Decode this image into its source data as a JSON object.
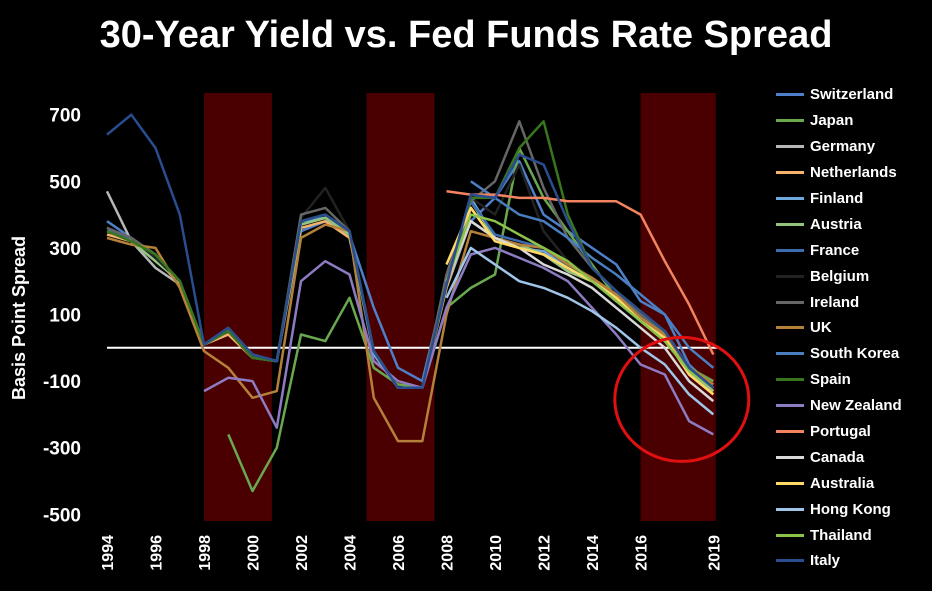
{
  "chart_data": {
    "type": "line",
    "title": "30-Year Yield vs. Fed Funds Rate Spread",
    "xlabel": "",
    "ylabel": "Basis Point Spread",
    "ylim": [
      -520,
      720
    ],
    "xlim": [
      1994,
      2020.1
    ],
    "y_ticks": [
      "700",
      "500",
      "300",
      "100",
      "-100",
      "-300",
      "-500"
    ],
    "y_tick_values": [
      700,
      500,
      300,
      100,
      -100,
      -300,
      -500
    ],
    "x_ticks": [
      "1994",
      "1996",
      "1998",
      "2000",
      "2002",
      "2004",
      "2006",
      "2008",
      "2010",
      "2012",
      "2014",
      "2016",
      "2019"
    ],
    "x_tick_values": [
      1994,
      1996,
      1998,
      2000,
      2002,
      2004,
      2006,
      2008,
      2010,
      2012,
      2014,
      2016,
      2019
    ],
    "zero_line": 0,
    "recession_bands": [
      [
        1998,
        2000.8
      ],
      [
        2004.7,
        2007.5
      ],
      [
        2016,
        2019.1
      ]
    ],
    "band_color": "#4a0000",
    "annotation_circle": {
      "x": 2017.7,
      "y": -155,
      "color": "#e01010"
    },
    "series": [
      {
        "name": "Switzerland",
        "color": "#4f7fc8",
        "x": [
          1994,
          1995,
          1996,
          1997,
          1998,
          1999,
          2000,
          2001,
          2002,
          2003,
          2004,
          2005,
          2006,
          2007,
          2008,
          2009,
          2010,
          2011,
          2012,
          2013,
          2014,
          2015,
          2016,
          2017,
          2018,
          2019
        ],
        "values": [
          380,
          330,
          280,
          200,
          10,
          40,
          -20,
          -40,
          350,
          380,
          340,
          120,
          -60,
          -100,
          200,
          380,
          450,
          560,
          400,
          350,
          300,
          250,
          140,
          100,
          -50,
          -120
        ]
      },
      {
        "name": "Japan",
        "color": "#6aa84f",
        "x": [
          1994,
          1995,
          1996,
          1997,
          1998,
          1999,
          2000,
          2001,
          2002,
          2003,
          2004,
          2005,
          2006,
          2007,
          2008,
          2009,
          2010,
          2011,
          2012,
          2013,
          2014,
          2015,
          2016,
          2017,
          2018,
          2019
        ],
        "values": [
          null,
          null,
          null,
          null,
          null,
          -260,
          -430,
          -300,
          40,
          20,
          150,
          -60,
          -110,
          -120,
          120,
          180,
          220,
          600,
          450,
          350,
          250,
          150,
          80,
          20,
          -60,
          -100
        ]
      },
      {
        "name": "Germany",
        "color": "#b7b7b7",
        "x": [
          1994,
          1995,
          1996,
          1997,
          1998,
          1999,
          2000,
          2001,
          2002,
          2003,
          2004,
          2005,
          2006,
          2007,
          2008,
          2009,
          2010,
          2011,
          2012,
          2013,
          2014,
          2015,
          2016,
          2017,
          2018,
          2019
        ],
        "values": [
          470,
          320,
          240,
          190,
          10,
          50,
          -30,
          -40,
          370,
          390,
          340,
          -10,
          -120,
          -120,
          180,
          380,
          330,
          300,
          280,
          230,
          200,
          150,
          90,
          40,
          -80,
          -140
        ]
      },
      {
        "name": "Netherlands",
        "color": "#f6b26b",
        "x": [
          1994,
          1995,
          1996,
          1997,
          1998,
          1999,
          2000,
          2001,
          2002,
          2003,
          2004,
          2005,
          2006,
          2007,
          2008,
          2009,
          2010,
          2011,
          2012,
          2013,
          2014,
          2015,
          2016,
          2017,
          2018,
          2019
        ],
        "values": [
          340,
          320,
          270,
          190,
          10,
          40,
          -30,
          -40,
          360,
          380,
          330,
          -10,
          -120,
          -120,
          180,
          420,
          320,
          300,
          280,
          230,
          200,
          160,
          90,
          40,
          -70,
          -130
        ]
      },
      {
        "name": "Finland",
        "color": "#6fa8dc",
        "x": [
          1994,
          1995,
          1996,
          1997,
          1998,
          1999,
          2000,
          2001,
          2002,
          2003,
          2004,
          2005,
          2006,
          2007,
          2008,
          2009,
          2010,
          2011,
          2012,
          2013,
          2014,
          2015,
          2016,
          2017,
          2018,
          2019
        ],
        "values": [
          360,
          320,
          260,
          200,
          10,
          50,
          -30,
          -40,
          380,
          390,
          340,
          -20,
          -120,
          -120,
          200,
          450,
          330,
          300,
          290,
          240,
          200,
          150,
          90,
          50,
          -60,
          -120
        ]
      },
      {
        "name": "Austria",
        "color": "#93c47d",
        "x": [
          1994,
          1995,
          1996,
          1997,
          1998,
          1999,
          2000,
          2001,
          2002,
          2003,
          2004,
          2005,
          2006,
          2007,
          2008,
          2009,
          2010,
          2011,
          2012,
          2013,
          2014,
          2015,
          2016,
          2017,
          2018,
          2019
        ],
        "values": [
          350,
          320,
          260,
          200,
          10,
          50,
          -30,
          -40,
          370,
          390,
          340,
          -10,
          -120,
          -120,
          200,
          440,
          330,
          310,
          280,
          230,
          200,
          150,
          90,
          40,
          -70,
          -130
        ]
      },
      {
        "name": "France",
        "color": "#3d6bb0",
        "x": [
          1994,
          1995,
          1996,
          1997,
          1998,
          1999,
          2000,
          2001,
          2002,
          2003,
          2004,
          2005,
          2006,
          2007,
          2008,
          2009,
          2010,
          2011,
          2012,
          2013,
          2014,
          2015,
          2016,
          2017,
          2018,
          2019
        ],
        "values": [
          350,
          330,
          270,
          200,
          10,
          50,
          -30,
          -40,
          380,
          400,
          350,
          -10,
          -120,
          -120,
          190,
          440,
          340,
          320,
          300,
          250,
          210,
          160,
          100,
          50,
          -60,
          -120
        ]
      },
      {
        "name": "Belgium",
        "color": "#222222",
        "x": [
          1994,
          1995,
          1996,
          1997,
          1998,
          1999,
          2000,
          2001,
          2002,
          2003,
          2004,
          2005,
          2006,
          2007,
          2008,
          2009,
          2010,
          2011,
          2012,
          2013,
          2014,
          2015,
          2016,
          2017,
          2018,
          2019
        ],
        "values": [
          360,
          330,
          270,
          200,
          10,
          50,
          -30,
          -40,
          390,
          480,
          350,
          -10,
          -120,
          -120,
          190,
          450,
          400,
          550,
          350,
          260,
          210,
          160,
          100,
          50,
          -60,
          -120
        ]
      },
      {
        "name": "Ireland",
        "color": "#666666",
        "x": [
          1994,
          1995,
          1996,
          1997,
          1998,
          1999,
          2000,
          2001,
          2002,
          2003,
          2004,
          2005,
          2006,
          2007,
          2008,
          2009,
          2010,
          2011,
          2012,
          2013,
          2014,
          2015,
          2016,
          2017,
          2018,
          2019
        ],
        "values": [
          360,
          330,
          280,
          200,
          10,
          60,
          -20,
          -40,
          400,
          420,
          350,
          -10,
          -120,
          -120,
          220,
          440,
          500,
          680,
          480,
          330,
          240,
          170,
          100,
          50,
          -60,
          -120
        ]
      },
      {
        "name": "UK",
        "color": "#b5803a",
        "x": [
          1994,
          1995,
          1996,
          1997,
          1998,
          1999,
          2000,
          2001,
          2002,
          2003,
          2004,
          2005,
          2006,
          2007,
          2008,
          2009,
          2010,
          2011,
          2012,
          2013,
          2014,
          2015,
          2016,
          2017,
          2018,
          2019
        ],
        "values": [
          330,
          310,
          300,
          180,
          -10,
          -60,
          -150,
          -130,
          330,
          370,
          350,
          -150,
          -280,
          -280,
          100,
          350,
          330,
          310,
          300,
          250,
          210,
          160,
          90,
          40,
          -60,
          -110
        ]
      },
      {
        "name": "South Korea",
        "color": "#4a7ec0",
        "x": [
          1994,
          1995,
          1996,
          1997,
          1998,
          1999,
          2000,
          2001,
          2002,
          2003,
          2004,
          2005,
          2006,
          2007,
          2008,
          2009,
          2010,
          2011,
          2012,
          2013,
          2014,
          2015,
          2016,
          2017,
          2018,
          2019
        ],
        "values": [
          null,
          null,
          null,
          null,
          null,
          null,
          null,
          null,
          null,
          null,
          null,
          null,
          null,
          null,
          null,
          500,
          450,
          400,
          380,
          330,
          270,
          220,
          160,
          100,
          0,
          -60
        ]
      },
      {
        "name": "Spain",
        "color": "#38761d",
        "x": [
          1994,
          1995,
          1996,
          1997,
          1998,
          1999,
          2000,
          2001,
          2002,
          2003,
          2004,
          2005,
          2006,
          2007,
          2008,
          2009,
          2010,
          2011,
          2012,
          2013,
          2014,
          2015,
          2016,
          2017,
          2018,
          2019
        ],
        "values": [
          350,
          320,
          280,
          200,
          10,
          50,
          -30,
          -40,
          380,
          400,
          350,
          -10,
          -120,
          -120,
          190,
          450,
          450,
          600,
          680,
          400,
          240,
          170,
          110,
          50,
          -60,
          -120
        ]
      },
      {
        "name": "New Zealand",
        "color": "#8e7cc3",
        "x": [
          1994,
          1995,
          1996,
          1997,
          1998,
          1999,
          2000,
          2001,
          2002,
          2003,
          2004,
          2005,
          2006,
          2007,
          2008,
          2009,
          2010,
          2011,
          2012,
          2013,
          2014,
          2015,
          2016,
          2017,
          2018,
          2019
        ],
        "values": [
          null,
          null,
          null,
          null,
          -130,
          -90,
          -100,
          -240,
          200,
          260,
          220,
          -40,
          -100,
          -120,
          120,
          280,
          300,
          270,
          240,
          200,
          120,
          40,
          -50,
          -80,
          -220,
          -260
        ]
      },
      {
        "name": "Portugal",
        "color": "#f4845f",
        "x": [
          1994,
          1995,
          1996,
          1997,
          1998,
          1999,
          2000,
          2001,
          2002,
          2003,
          2004,
          2005,
          2006,
          2007,
          2008,
          2009,
          2010,
          2011,
          2012,
          2013,
          2014,
          2015,
          2016,
          2017,
          2018,
          2019
        ],
        "values": [
          null,
          null,
          null,
          null,
          null,
          null,
          null,
          null,
          null,
          null,
          null,
          null,
          null,
          null,
          470,
          460,
          460,
          450,
          450,
          440,
          440,
          440,
          400,
          260,
          130,
          -20
        ]
      },
      {
        "name": "Canada",
        "color": "#d9d9d9",
        "x": [
          1994,
          1995,
          1996,
          1997,
          1998,
          1999,
          2000,
          2001,
          2002,
          2003,
          2004,
          2005,
          2006,
          2007,
          2008,
          2009,
          2010,
          2011,
          2012,
          2013,
          2014,
          2015,
          2016,
          2017,
          2018,
          2019
        ],
        "values": [
          null,
          null,
          null,
          null,
          null,
          null,
          null,
          null,
          null,
          null,
          null,
          null,
          null,
          null,
          200,
          380,
          330,
          300,
          250,
          220,
          180,
          120,
          60,
          0,
          -100,
          -160
        ]
      },
      {
        "name": "Australia",
        "color": "#ffd966",
        "x": [
          1994,
          1995,
          1996,
          1997,
          1998,
          1999,
          2000,
          2001,
          2002,
          2003,
          2004,
          2005,
          2006,
          2007,
          2008,
          2009,
          2010,
          2011,
          2012,
          2013,
          2014,
          2015,
          2016,
          2017,
          2018,
          2019
        ],
        "values": [
          null,
          null,
          null,
          null,
          null,
          null,
          null,
          null,
          null,
          null,
          null,
          null,
          null,
          null,
          250,
          420,
          320,
          300,
          280,
          240,
          200,
          150,
          80,
          30,
          -80,
          -140
        ]
      },
      {
        "name": "Hong Kong",
        "color": "#9fc5e8",
        "x": [
          1994,
          1995,
          1996,
          1997,
          1998,
          1999,
          2000,
          2001,
          2002,
          2003,
          2004,
          2005,
          2006,
          2007,
          2008,
          2009,
          2010,
          2011,
          2012,
          2013,
          2014,
          2015,
          2016,
          2017,
          2018,
          2019
        ],
        "values": [
          null,
          null,
          null,
          null,
          null,
          null,
          null,
          null,
          null,
          null,
          null,
          null,
          null,
          null,
          150,
          300,
          250,
          200,
          180,
          150,
          110,
          60,
          0,
          -50,
          -140,
          -200
        ]
      },
      {
        "name": "Thailand",
        "color": "#8bc34a",
        "x": [
          1994,
          1995,
          1996,
          1997,
          1998,
          1999,
          2000,
          2001,
          2002,
          2003,
          2004,
          2005,
          2006,
          2007,
          2008,
          2009,
          2010,
          2011,
          2012,
          2013,
          2014,
          2015,
          2016,
          2017,
          2018,
          2019
        ],
        "values": [
          null,
          null,
          null,
          null,
          null,
          null,
          null,
          null,
          null,
          null,
          null,
          null,
          null,
          null,
          200,
          400,
          380,
          340,
          300,
          260,
          200,
          140,
          80,
          20,
          -70,
          -120
        ]
      },
      {
        "name": "Italy",
        "color": "#2a4d8f",
        "x": [
          1994,
          1995,
          1996,
          1997,
          1998,
          1999,
          2000,
          2001,
          2002,
          2003,
          2004,
          2005,
          2006,
          2007,
          2008,
          2009,
          2010,
          2011,
          2012,
          2013,
          2014,
          2015,
          2016,
          2017,
          2018,
          2019
        ],
        "values": [
          640,
          700,
          600,
          400,
          10,
          60,
          -20,
          -40,
          380,
          400,
          350,
          -10,
          -120,
          -120,
          190,
          460,
          450,
          580,
          550,
          380,
          240,
          170,
          110,
          50,
          -60,
          -120
        ]
      }
    ]
  }
}
